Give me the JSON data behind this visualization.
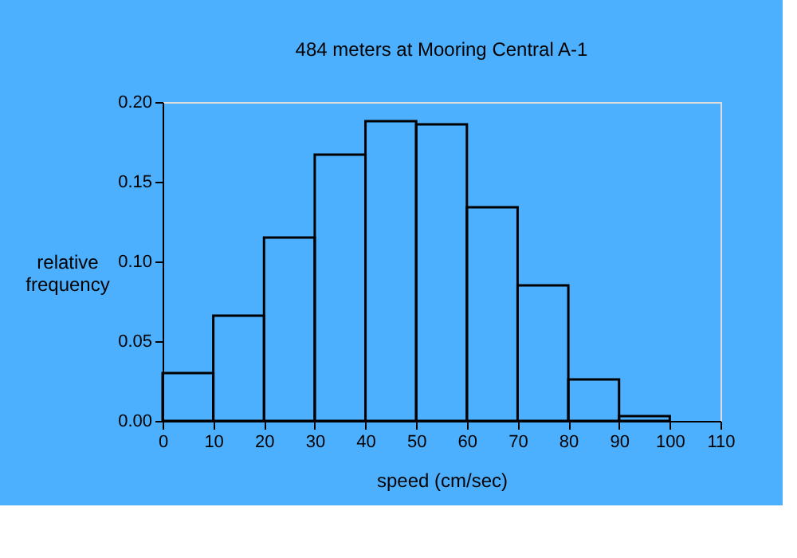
{
  "chart_data": {
    "type": "histogram",
    "title": "484 meters at Mooring Central A-1",
    "xlabel": "speed (cm/sec)",
    "ylabel": "relative frequency",
    "bins": [
      0,
      10,
      20,
      30,
      40,
      50,
      60,
      70,
      80,
      90,
      100
    ],
    "values": [
      0.03,
      0.066,
      0.115,
      0.167,
      0.188,
      0.186,
      0.134,
      0.085,
      0.026,
      0.003
    ],
    "color": "#000000",
    "xlim": [
      0,
      110
    ],
    "xticks": [
      0,
      10,
      20,
      30,
      40,
      50,
      60,
      70,
      80,
      90,
      100,
      110
    ],
    "ylim": [
      0,
      0.2
    ],
    "yticks": [
      {
        "value": 0,
        "label": "0.00"
      },
      0.05,
      {
        "value": 0.1,
        "label": "0.10"
      },
      0.15,
      {
        "value": 0.2,
        "label": "0.20"
      }
    ],
    "grid": false
  }
}
